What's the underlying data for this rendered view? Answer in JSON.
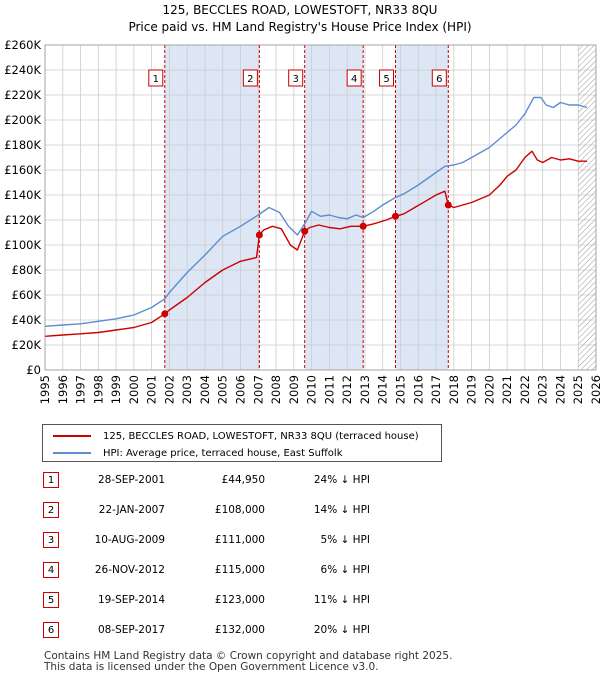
{
  "chart_data": {
    "type": "line",
    "title": "125, BECCLES ROAD, LOWESTOFT, NR33 8QU",
    "subtitle": "Price paid vs. HM Land Registry's House Price Index (HPI)",
    "xlim": [
      1995,
      2026
    ],
    "ylim": [
      0,
      260000
    ],
    "x_ticks": [
      "1995",
      "1996",
      "1997",
      "1998",
      "1999",
      "2000",
      "2001",
      "2002",
      "2003",
      "2004",
      "2005",
      "2006",
      "2007",
      "2008",
      "2009",
      "2010",
      "2011",
      "2012",
      "2013",
      "2014",
      "2015",
      "2016",
      "2017",
      "2018",
      "2019",
      "2020",
      "2021",
      "2022",
      "2023",
      "2024",
      "2025",
      "2026"
    ],
    "y_ticks": [
      {
        "value": 0,
        "label": "£0"
      },
      {
        "value": 20000,
        "label": "£20K"
      },
      {
        "value": 40000,
        "label": "£40K"
      },
      {
        "value": 60000,
        "label": "£60K"
      },
      {
        "value": 80000,
        "label": "£80K"
      },
      {
        "value": 100000,
        "label": "£100K"
      },
      {
        "value": 120000,
        "label": "£120K"
      },
      {
        "value": 140000,
        "label": "£140K"
      },
      {
        "value": 160000,
        "label": "£160K"
      },
      {
        "value": 180000,
        "label": "£180K"
      },
      {
        "value": 200000,
        "label": "£200K"
      },
      {
        "value": 220000,
        "label": "£220K"
      },
      {
        "value": 240000,
        "label": "£240K"
      },
      {
        "value": 260000,
        "label": "£260K"
      }
    ],
    "grid": true,
    "shaded_periods": [
      [
        2001.74,
        2007.06
      ],
      [
        2009.61,
        2012.9
      ],
      [
        2014.72,
        2017.69
      ]
    ],
    "hatched_after": 2025.0,
    "series": [
      {
        "name": "125, BECCLES ROAD, LOWESTOFT, NR33 8QU (terraced house)",
        "color": "#cc0000",
        "x": [
          1995.0,
          1996.0,
          1997.0,
          1998.0,
          1999.0,
          2000.0,
          2001.0,
          2001.74,
          2002.0,
          2003.0,
          2004.0,
          2005.0,
          2006.0,
          2006.9,
          2007.06,
          2007.3,
          2007.8,
          2008.3,
          2008.8,
          2009.2,
          2009.61,
          2009.9,
          2010.4,
          2011.0,
          2011.6,
          2012.2,
          2012.9,
          2013.5,
          2014.2,
          2014.72,
          2015.2,
          2015.8,
          2016.4,
          2017.0,
          2017.5,
          2017.69,
          2018.0,
          2019.0,
          2020.0,
          2020.6,
          2021.0,
          2021.5,
          2022.0,
          2022.4,
          2022.7,
          2023.0,
          2023.5,
          2024.0,
          2024.5,
          2025.0,
          2025.5
        ],
        "y": [
          27000,
          28000,
          29000,
          30000,
          32000,
          34000,
          38000,
          44950,
          48000,
          58000,
          70000,
          80000,
          87000,
          90000,
          108000,
          112000,
          115000,
          113000,
          100000,
          96000,
          111000,
          114000,
          116000,
          114000,
          113000,
          115000,
          115000,
          117000,
          120000,
          123000,
          125000,
          130000,
          135000,
          140000,
          143000,
          132000,
          130000,
          134000,
          140000,
          148000,
          155000,
          160000,
          170000,
          175000,
          168000,
          166000,
          170000,
          168000,
          169000,
          167000,
          167000
        ]
      },
      {
        "name": "HPI: Average price, terraced house, East Suffolk",
        "color": "#5b8dd0",
        "x": [
          1995.0,
          1996.0,
          1997.0,
          1998.0,
          1999.0,
          2000.0,
          2001.0,
          2001.74,
          2002.0,
          2003.0,
          2004.0,
          2005.0,
          2006.0,
          2007.0,
          2007.6,
          2008.2,
          2008.7,
          2009.2,
          2009.61,
          2010.0,
          2010.5,
          2011.0,
          2011.5,
          2012.0,
          2012.5,
          2012.9,
          2013.5,
          2014.0,
          2014.72,
          2015.2,
          2016.0,
          2017.0,
          2017.5,
          2018.0,
          2018.5,
          2019.0,
          2020.0,
          2020.5,
          2021.0,
          2021.5,
          2022.0,
          2022.5,
          2022.9,
          2023.2,
          2023.6,
          2024.0,
          2024.5,
          2025.0,
          2025.5
        ],
        "y": [
          35000,
          36000,
          37000,
          39000,
          41000,
          44000,
          50000,
          57000,
          62000,
          78000,
          92000,
          107000,
          115000,
          124000,
          130000,
          126000,
          115000,
          108000,
          117000,
          127000,
          123000,
          124000,
          122000,
          121000,
          124000,
          122000,
          127000,
          132000,
          138000,
          141000,
          148000,
          158000,
          163000,
          164000,
          166000,
          170000,
          178000,
          184000,
          190000,
          196000,
          205000,
          218000,
          218000,
          212000,
          210000,
          214000,
          212000,
          212000,
          210000
        ]
      }
    ],
    "sales": [
      {
        "marker": "1",
        "date": "28-SEP-2001",
        "x": 2001.74,
        "price": 44950,
        "price_label": "£44,950",
        "hpi": "24% ↓ HPI"
      },
      {
        "marker": "2",
        "date": "22-JAN-2007",
        "x": 2007.06,
        "price": 108000,
        "price_label": "£108,000",
        "hpi": "14% ↓ HPI"
      },
      {
        "marker": "3",
        "date": "10-AUG-2009",
        "x": 2009.61,
        "price": 111000,
        "price_label": "£111,000",
        "hpi": "5% ↓ HPI"
      },
      {
        "marker": "4",
        "date": "26-NOV-2012",
        "x": 2012.9,
        "price": 115000,
        "price_label": "£115,000",
        "hpi": "6% ↓ HPI"
      },
      {
        "marker": "5",
        "date": "19-SEP-2014",
        "x": 2014.72,
        "price": 123000,
        "price_label": "£123,000",
        "hpi": "11% ↓ HPI"
      },
      {
        "marker": "6",
        "date": "08-SEP-2017",
        "x": 2017.69,
        "price": 132000,
        "price_label": "£132,000",
        "hpi": "20% ↓ HPI"
      }
    ],
    "legend": {
      "property_label": "125, BECCLES ROAD, LOWESTOFT, NR33 8QU (terraced house)",
      "hpi_label": "HPI: Average price, terraced house, East Suffolk"
    }
  },
  "colors": {
    "property": "#cc0000",
    "hpi": "#5b8dd0",
    "shade": "#dce6f5",
    "grid": "#cccccc"
  },
  "footer": {
    "line1": "Contains HM Land Registry data © Crown copyright and database right 2025.",
    "line2": "This data is licensed under the Open Government Licence v3.0."
  }
}
